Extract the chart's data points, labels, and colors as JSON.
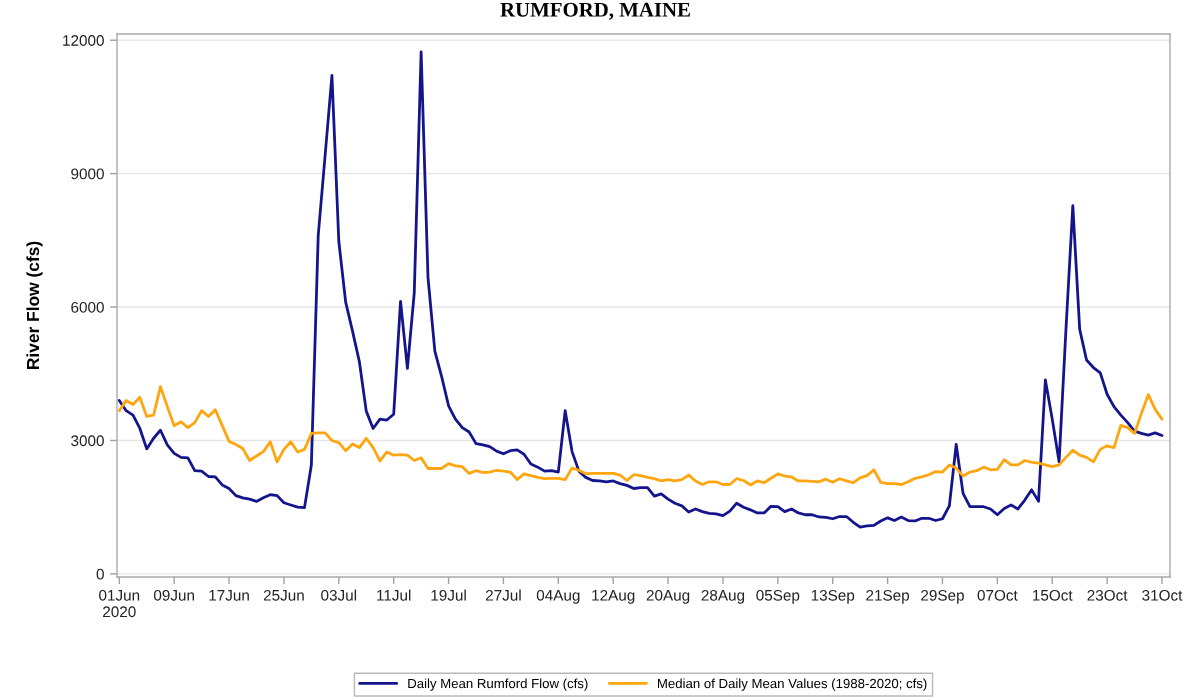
{
  "chart_data": {
    "type": "line",
    "title": "RUMFORD, MAINE",
    "ylabel": "River Flow (cfs)",
    "x": [
      "2020-06-01",
      "2020-06-02",
      "2020-06-03",
      "2020-06-04",
      "2020-06-05",
      "2020-06-06",
      "2020-06-07",
      "2020-06-08",
      "2020-06-09",
      "2020-06-10",
      "2020-06-11",
      "2020-06-12",
      "2020-06-13",
      "2020-06-14",
      "2020-06-15",
      "2020-06-16",
      "2020-06-17",
      "2020-06-18",
      "2020-06-19",
      "2020-06-20",
      "2020-06-21",
      "2020-06-22",
      "2020-06-23",
      "2020-06-24",
      "2020-06-25",
      "2020-06-26",
      "2020-06-27",
      "2020-06-28",
      "2020-06-29",
      "2020-06-30",
      "2020-07-01",
      "2020-07-02",
      "2020-07-03",
      "2020-07-04",
      "2020-07-05",
      "2020-07-06",
      "2020-07-07",
      "2020-07-08",
      "2020-07-09",
      "2020-07-10",
      "2020-07-11",
      "2020-07-12",
      "2020-07-13",
      "2020-07-14",
      "2020-07-15",
      "2020-07-16",
      "2020-07-17",
      "2020-07-18",
      "2020-07-19",
      "2020-07-20",
      "2020-07-21",
      "2020-07-22",
      "2020-07-23",
      "2020-07-24",
      "2020-07-25",
      "2020-07-26",
      "2020-07-27",
      "2020-07-28",
      "2020-07-29",
      "2020-07-30",
      "2020-07-31",
      "2020-08-01",
      "2020-08-02",
      "2020-08-03",
      "2020-08-04",
      "2020-08-05",
      "2020-08-06",
      "2020-08-07",
      "2020-08-08",
      "2020-08-09",
      "2020-08-10",
      "2020-08-11",
      "2020-08-12",
      "2020-08-13",
      "2020-08-14",
      "2020-08-15",
      "2020-08-16",
      "2020-08-17",
      "2020-08-18",
      "2020-08-19",
      "2020-08-20",
      "2020-08-21",
      "2020-08-22",
      "2020-08-23",
      "2020-08-24",
      "2020-08-25",
      "2020-08-26",
      "2020-08-27",
      "2020-08-28",
      "2020-08-29",
      "2020-08-30",
      "2020-08-31",
      "2020-09-01",
      "2020-09-02",
      "2020-09-03",
      "2020-09-04",
      "2020-09-05",
      "2020-09-06",
      "2020-09-07",
      "2020-09-08",
      "2020-09-09",
      "2020-09-10",
      "2020-09-11",
      "2020-09-12",
      "2020-09-13",
      "2020-09-14",
      "2020-09-15",
      "2020-09-16",
      "2020-09-17",
      "2020-09-18",
      "2020-09-19",
      "2020-09-20",
      "2020-09-21",
      "2020-09-22",
      "2020-09-23",
      "2020-09-24",
      "2020-09-25",
      "2020-09-26",
      "2020-09-27",
      "2020-09-28",
      "2020-09-29",
      "2020-09-30",
      "2020-10-01",
      "2020-10-02",
      "2020-10-03",
      "2020-10-04",
      "2020-10-05",
      "2020-10-06",
      "2020-10-07",
      "2020-10-08",
      "2020-10-09",
      "2020-10-10",
      "2020-10-11",
      "2020-10-12",
      "2020-10-13",
      "2020-10-14",
      "2020-10-15",
      "2020-10-16",
      "2020-10-17",
      "2020-10-18",
      "2020-10-19",
      "2020-10-20",
      "2020-10-21",
      "2020-10-22",
      "2020-10-23",
      "2020-10-24",
      "2020-10-25",
      "2020-10-26",
      "2020-10-27",
      "2020-10-28",
      "2020-10-29",
      "2020-10-30",
      "2020-10-31"
    ],
    "series": [
      {
        "name": "Daily Mean Rumford Flow (cfs)",
        "color": "#14148c",
        "values": [
          3900,
          3670,
          3570,
          3270,
          2810,
          3050,
          3230,
          2900,
          2710,
          2620,
          2610,
          2320,
          2310,
          2190,
          2180,
          2000,
          1920,
          1760,
          1710,
          1680,
          1630,
          1710,
          1780,
          1760,
          1600,
          1550,
          1500,
          1490,
          2450,
          7610,
          9400,
          11210,
          7480,
          6110,
          5460,
          4770,
          3660,
          3270,
          3480,
          3460,
          3590,
          6130,
          4620,
          6320,
          11740,
          6670,
          5010,
          4430,
          3780,
          3480,
          3290,
          3190,
          2930,
          2900,
          2860,
          2760,
          2700,
          2770,
          2790,
          2690,
          2470,
          2400,
          2310,
          2320,
          2290,
          3670,
          2750,
          2310,
          2170,
          2100,
          2090,
          2070,
          2090,
          2030,
          1990,
          1920,
          1940,
          1940,
          1750,
          1800,
          1680,
          1590,
          1530,
          1390,
          1460,
          1400,
          1360,
          1350,
          1310,
          1410,
          1590,
          1500,
          1440,
          1370,
          1370,
          1520,
          1510,
          1400,
          1460,
          1370,
          1330,
          1330,
          1280,
          1270,
          1240,
          1290,
          1290,
          1160,
          1050,
          1080,
          1090,
          1190,
          1260,
          1200,
          1280,
          1200,
          1190,
          1250,
          1250,
          1200,
          1240,
          1530,
          2910,
          1810,
          1510,
          1510,
          1510,
          1460,
          1330,
          1470,
          1550,
          1460,
          1660,
          1890,
          1630,
          4360,
          3480,
          2520,
          5500,
          8280,
          5500,
          4810,
          4640,
          4520,
          4040,
          3760,
          3570,
          3400,
          3210,
          3160,
          3120,
          3170,
          3110
        ]
      },
      {
        "name": "Median of Daily Mean Values (1988-2020; cfs)",
        "color": "#ffa50f",
        "values": [
          3670,
          3900,
          3810,
          3970,
          3540,
          3570,
          4210,
          3760,
          3330,
          3420,
          3290,
          3400,
          3670,
          3540,
          3690,
          3340,
          2980,
          2910,
          2820,
          2550,
          2650,
          2750,
          2970,
          2520,
          2800,
          2970,
          2740,
          2800,
          3160,
          3170,
          3170,
          3000,
          2950,
          2770,
          2920,
          2840,
          3050,
          2840,
          2540,
          2740,
          2670,
          2680,
          2670,
          2550,
          2610,
          2370,
          2370,
          2370,
          2480,
          2430,
          2410,
          2260,
          2320,
          2280,
          2290,
          2330,
          2310,
          2290,
          2120,
          2250,
          2210,
          2170,
          2140,
          2150,
          2150,
          2120,
          2380,
          2330,
          2250,
          2260,
          2260,
          2260,
          2260,
          2220,
          2100,
          2230,
          2210,
          2170,
          2140,
          2090,
          2120,
          2090,
          2120,
          2220,
          2090,
          2010,
          2070,
          2070,
          2010,
          2010,
          2140,
          2100,
          2000,
          2090,
          2050,
          2150,
          2250,
          2200,
          2180,
          2090,
          2090,
          2080,
          2070,
          2130,
          2060,
          2140,
          2090,
          2050,
          2160,
          2210,
          2340,
          2060,
          2030,
          2030,
          2010,
          2070,
          2150,
          2180,
          2230,
          2300,
          2290,
          2450,
          2380,
          2200,
          2290,
          2320,
          2400,
          2340,
          2350,
          2570,
          2450,
          2450,
          2550,
          2510,
          2490,
          2450,
          2410,
          2450,
          2620,
          2780,
          2670,
          2620,
          2520,
          2800,
          2880,
          2840,
          3340,
          3290,
          3160,
          3610,
          4030,
          3700,
          3480
        ]
      }
    ],
    "xlim": [
      "2020-05-31T16:00",
      "2020-11-01T04:00"
    ],
    "xticks": [
      {
        "value": "2020-06-01",
        "label": "01Jun\n2020"
      },
      {
        "value": "2020-06-09",
        "label": "09Jun"
      },
      {
        "value": "2020-06-17",
        "label": "17Jun"
      },
      {
        "value": "2020-06-25",
        "label": "25Jun"
      },
      {
        "value": "2020-07-03",
        "label": "03Jul"
      },
      {
        "value": "2020-07-11",
        "label": "11Jul"
      },
      {
        "value": "2020-07-19",
        "label": "19Jul"
      },
      {
        "value": "2020-07-27",
        "label": "27Jul"
      },
      {
        "value": "2020-08-04",
        "label": "04Aug"
      },
      {
        "value": "2020-08-12",
        "label": "12Aug"
      },
      {
        "value": "2020-08-20",
        "label": "20Aug"
      },
      {
        "value": "2020-08-28",
        "label": "28Aug"
      },
      {
        "value": "2020-09-05",
        "label": "05Sep"
      },
      {
        "value": "2020-09-13",
        "label": "13Sep"
      },
      {
        "value": "2020-09-21",
        "label": "21Sep"
      },
      {
        "value": "2020-09-29",
        "label": "29Sep"
      },
      {
        "value": "2020-10-07",
        "label": "07Oct"
      },
      {
        "value": "2020-10-15",
        "label": "15Oct"
      },
      {
        "value": "2020-10-23",
        "label": "23Oct"
      },
      {
        "value": "2020-10-31",
        "label": "31Oct"
      }
    ],
    "ylim": [
      -70,
      12140
    ],
    "yticks": [
      0,
      3000,
      6000,
      9000,
      12000
    ],
    "grid": "y",
    "legend": "bottom"
  }
}
